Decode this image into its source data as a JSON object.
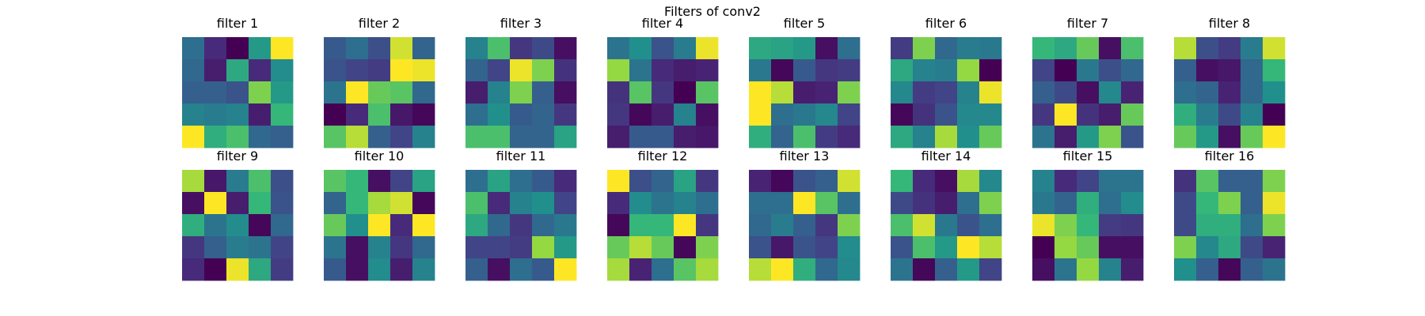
{
  "chart_data": {
    "type": "heatmap",
    "title": "Filters of conv2",
    "colormap": "viridis",
    "value_range": [
      0,
      1
    ],
    "grid": false,
    "filters": [
      {
        "label": "filter 1",
        "values": [
          [
            0.45,
            0.15,
            0.0,
            0.65,
            1.0
          ],
          [
            0.42,
            0.1,
            0.7,
            0.15,
            0.6
          ],
          [
            0.38,
            0.38,
            0.32,
            0.85,
            0.65
          ],
          [
            0.55,
            0.52,
            0.55,
            0.1,
            0.75
          ],
          [
            1.0,
            0.72,
            0.78,
            0.42,
            0.38
          ]
        ]
      },
      {
        "label": "filter 2",
        "values": [
          [
            0.35,
            0.45,
            0.3,
            0.95,
            0.4
          ],
          [
            0.32,
            0.25,
            0.22,
            1.0,
            0.98
          ],
          [
            0.48,
            1.0,
            0.82,
            0.8,
            0.42
          ],
          [
            0.0,
            0.15,
            0.78,
            0.08,
            0.02
          ],
          [
            0.8,
            0.92,
            0.38,
            0.25,
            0.55
          ]
        ]
      },
      {
        "label": "filter 3",
        "values": [
          [
            0.55,
            0.78,
            0.2,
            0.28,
            0.05
          ],
          [
            0.4,
            0.25,
            0.98,
            0.85,
            0.18
          ],
          [
            0.1,
            0.55,
            0.85,
            0.38,
            0.05
          ],
          [
            0.45,
            0.62,
            0.35,
            0.4,
            0.2
          ],
          [
            0.78,
            0.78,
            0.4,
            0.4,
            0.68
          ]
        ]
      },
      {
        "label": "filter 4",
        "values": [
          [
            0.48,
            0.62,
            0.32,
            0.52,
            0.98
          ],
          [
            0.88,
            0.48,
            0.15,
            0.1,
            0.12
          ],
          [
            0.18,
            0.8,
            0.2,
            0.0,
            0.8
          ],
          [
            0.2,
            0.02,
            0.1,
            0.55,
            0.05
          ],
          [
            0.1,
            0.35,
            0.35,
            0.1,
            0.08
          ]
        ]
      },
      {
        "label": "filter 5",
        "values": [
          [
            0.7,
            0.68,
            0.65,
            0.05,
            0.45
          ],
          [
            0.5,
            0.02,
            0.35,
            0.2,
            0.22
          ],
          [
            1.0,
            0.92,
            0.1,
            0.12,
            0.85
          ],
          [
            1.0,
            0.45,
            0.5,
            0.58,
            0.25
          ],
          [
            0.72,
            0.4,
            0.78,
            0.22,
            0.15
          ]
        ]
      },
      {
        "label": "filter 6",
        "values": [
          [
            0.22,
            0.85,
            0.42,
            0.52,
            0.5
          ],
          [
            0.7,
            0.55,
            0.52,
            0.88,
            0.0
          ],
          [
            0.58,
            0.22,
            0.25,
            0.55,
            0.98
          ],
          [
            0.02,
            0.18,
            0.32,
            0.58,
            0.58
          ],
          [
            0.7,
            0.55,
            0.9,
            0.62,
            0.82
          ]
        ]
      },
      {
        "label": "filter 7",
        "values": [
          [
            0.75,
            0.7,
            0.82,
            0.05,
            0.78
          ],
          [
            0.25,
            0.0,
            0.5,
            0.3,
            0.42
          ],
          [
            0.38,
            0.28,
            0.05,
            0.58,
            0.12
          ],
          [
            0.2,
            1.0,
            0.18,
            0.1,
            0.82
          ],
          [
            0.48,
            0.1,
            0.65,
            0.85,
            0.32
          ]
        ]
      },
      {
        "label": "filter 8",
        "values": [
          [
            0.92,
            0.3,
            0.22,
            0.52,
            0.95
          ],
          [
            0.38,
            0.05,
            0.08,
            0.42,
            0.75
          ],
          [
            0.45,
            0.4,
            0.12,
            0.42,
            0.62
          ],
          [
            0.72,
            0.52,
            0.28,
            0.55,
            0.0
          ],
          [
            0.82,
            0.65,
            0.05,
            0.82,
            1.0
          ]
        ]
      },
      {
        "label": "filter 9",
        "values": [
          [
            0.9,
            0.08,
            0.52,
            0.78,
            0.3
          ],
          [
            0.05,
            1.0,
            0.1,
            0.75,
            0.32
          ],
          [
            0.72,
            0.48,
            0.6,
            0.02,
            0.42
          ],
          [
            0.2,
            0.38,
            0.52,
            0.48,
            0.25
          ],
          [
            0.15,
            0.0,
            0.98,
            0.7,
            0.22
          ]
        ]
      },
      {
        "label": "filter 10",
        "values": [
          [
            0.8,
            0.75,
            0.05,
            0.25,
            0.68
          ],
          [
            0.4,
            0.75,
            0.9,
            0.95,
            0.02
          ],
          [
            0.82,
            0.62,
            1.0,
            0.15,
            1.0
          ],
          [
            0.48,
            0.05,
            0.55,
            0.2,
            0.42
          ],
          [
            0.35,
            0.05,
            0.6,
            0.1,
            0.55
          ]
        ]
      },
      {
        "label": "filter 11",
        "values": [
          [
            0.45,
            0.68,
            0.45,
            0.35,
            0.15
          ],
          [
            0.78,
            0.15,
            0.55,
            0.62,
            0.25
          ],
          [
            0.7,
            0.42,
            0.2,
            0.42,
            0.5
          ],
          [
            0.25,
            0.25,
            0.22,
            0.88,
            0.65
          ],
          [
            0.38,
            0.05,
            0.45,
            0.35,
            1.0
          ]
        ]
      },
      {
        "label": "filter 12",
        "values": [
          [
            1.0,
            0.3,
            0.4,
            0.68,
            0.2
          ],
          [
            0.15,
            0.6,
            0.48,
            0.55,
            0.45
          ],
          [
            0.02,
            0.75,
            0.75,
            1.0,
            0.2
          ],
          [
            0.82,
            0.92,
            0.82,
            0.02,
            0.85
          ],
          [
            0.9,
            0.12,
            0.45,
            0.8,
            0.9
          ]
        ]
      },
      {
        "label": "filter 13",
        "values": [
          [
            0.12,
            0.02,
            0.32,
            0.38,
            0.95
          ],
          [
            0.45,
            0.45,
            1.0,
            0.8,
            0.45
          ],
          [
            0.42,
            0.52,
            0.38,
            0.2,
            0.85
          ],
          [
            0.32,
            0.08,
            0.32,
            0.25,
            0.6
          ],
          [
            0.92,
            1.0,
            0.72,
            0.42,
            0.58
          ]
        ]
      },
      {
        "label": "filter 14",
        "values": [
          [
            0.75,
            0.15,
            0.05,
            0.9,
            0.58
          ],
          [
            0.28,
            0.18,
            0.1,
            0.45,
            0.85
          ],
          [
            0.78,
            0.95,
            0.5,
            0.32,
            0.45
          ],
          [
            0.32,
            0.78,
            0.65,
            1.0,
            0.92
          ],
          [
            0.48,
            0.02,
            0.38,
            0.65,
            0.25
          ]
        ]
      },
      {
        "label": "filter 15",
        "values": [
          [
            0.55,
            0.15,
            0.25,
            0.48,
            0.48
          ],
          [
            0.5,
            0.4,
            0.72,
            0.45,
            0.6
          ],
          [
            0.98,
            0.85,
            0.75,
            0.22,
            0.2
          ],
          [
            0.0,
            0.88,
            0.82,
            0.05,
            0.05
          ],
          [
            0.05,
            0.48,
            0.88,
            0.55,
            0.1
          ]
        ]
      },
      {
        "label": "filter 16",
        "values": [
          [
            0.18,
            0.8,
            0.38,
            0.38,
            0.85
          ],
          [
            0.28,
            0.75,
            0.85,
            0.38,
            0.98
          ],
          [
            0.28,
            0.72,
            0.72,
            0.45,
            0.85
          ],
          [
            0.85,
            0.58,
            0.7,
            0.28,
            0.12
          ],
          [
            0.62,
            0.38,
            0.02,
            0.38,
            0.48
          ]
        ]
      }
    ]
  }
}
